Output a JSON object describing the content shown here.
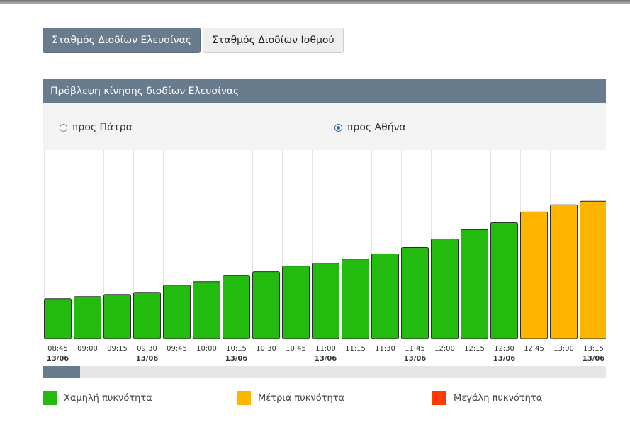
{
  "tabs": [
    {
      "label": "Σταθμός Διοδίων Ελευσίνας",
      "active": true
    },
    {
      "label": "Σταθμός Διοδίων Ισθμού",
      "active": false
    }
  ],
  "panel": {
    "title": "Πρόβλεψη κίνησης διοδίων Ελευσίνας",
    "directions": [
      {
        "label": "προς Πάτρα",
        "checked": false
      },
      {
        "label": "προς Αθήνα",
        "checked": true
      }
    ]
  },
  "legend": [
    {
      "label": "Χαμηλή πυκνότητα",
      "color": "#22bb0e"
    },
    {
      "label": "Μέτρια πυκνότητα",
      "color": "#ffb400"
    },
    {
      "label": "Μεγάλη πυκνότητα",
      "color": "#ff3c00"
    }
  ],
  "scroll_position": 0,
  "chart_data": {
    "type": "bar",
    "categories": [
      "08:45",
      "09:00",
      "09:15",
      "09:30",
      "09:45",
      "10:00",
      "10:15",
      "10:30",
      "10:45",
      "11:00",
      "11:15",
      "11:30",
      "11:45",
      "12:00",
      "12:15",
      "12:30",
      "12:45",
      "13:00",
      "13:15"
    ],
    "date_labels": [
      "13/06",
      "",
      "",
      "13/06",
      "",
      "",
      "13/06",
      "",
      "",
      "13/06",
      "",
      "",
      "13/06",
      "",
      "",
      "13/06",
      "",
      "",
      "13/06"
    ],
    "values": [
      56,
      59,
      62,
      65,
      75,
      80,
      89,
      94,
      102,
      106,
      112,
      119,
      128,
      140,
      153,
      163,
      178,
      188,
      193
    ],
    "levels": [
      "low",
      "low",
      "low",
      "low",
      "low",
      "low",
      "low",
      "low",
      "low",
      "low",
      "low",
      "low",
      "low",
      "low",
      "low",
      "low",
      "medium",
      "medium",
      "medium"
    ],
    "level_colors": {
      "low": "#22bb0e",
      "medium": "#ffb400",
      "high": "#ff3c00"
    },
    "ylim": [
      0,
      265
    ],
    "grid": true
  }
}
